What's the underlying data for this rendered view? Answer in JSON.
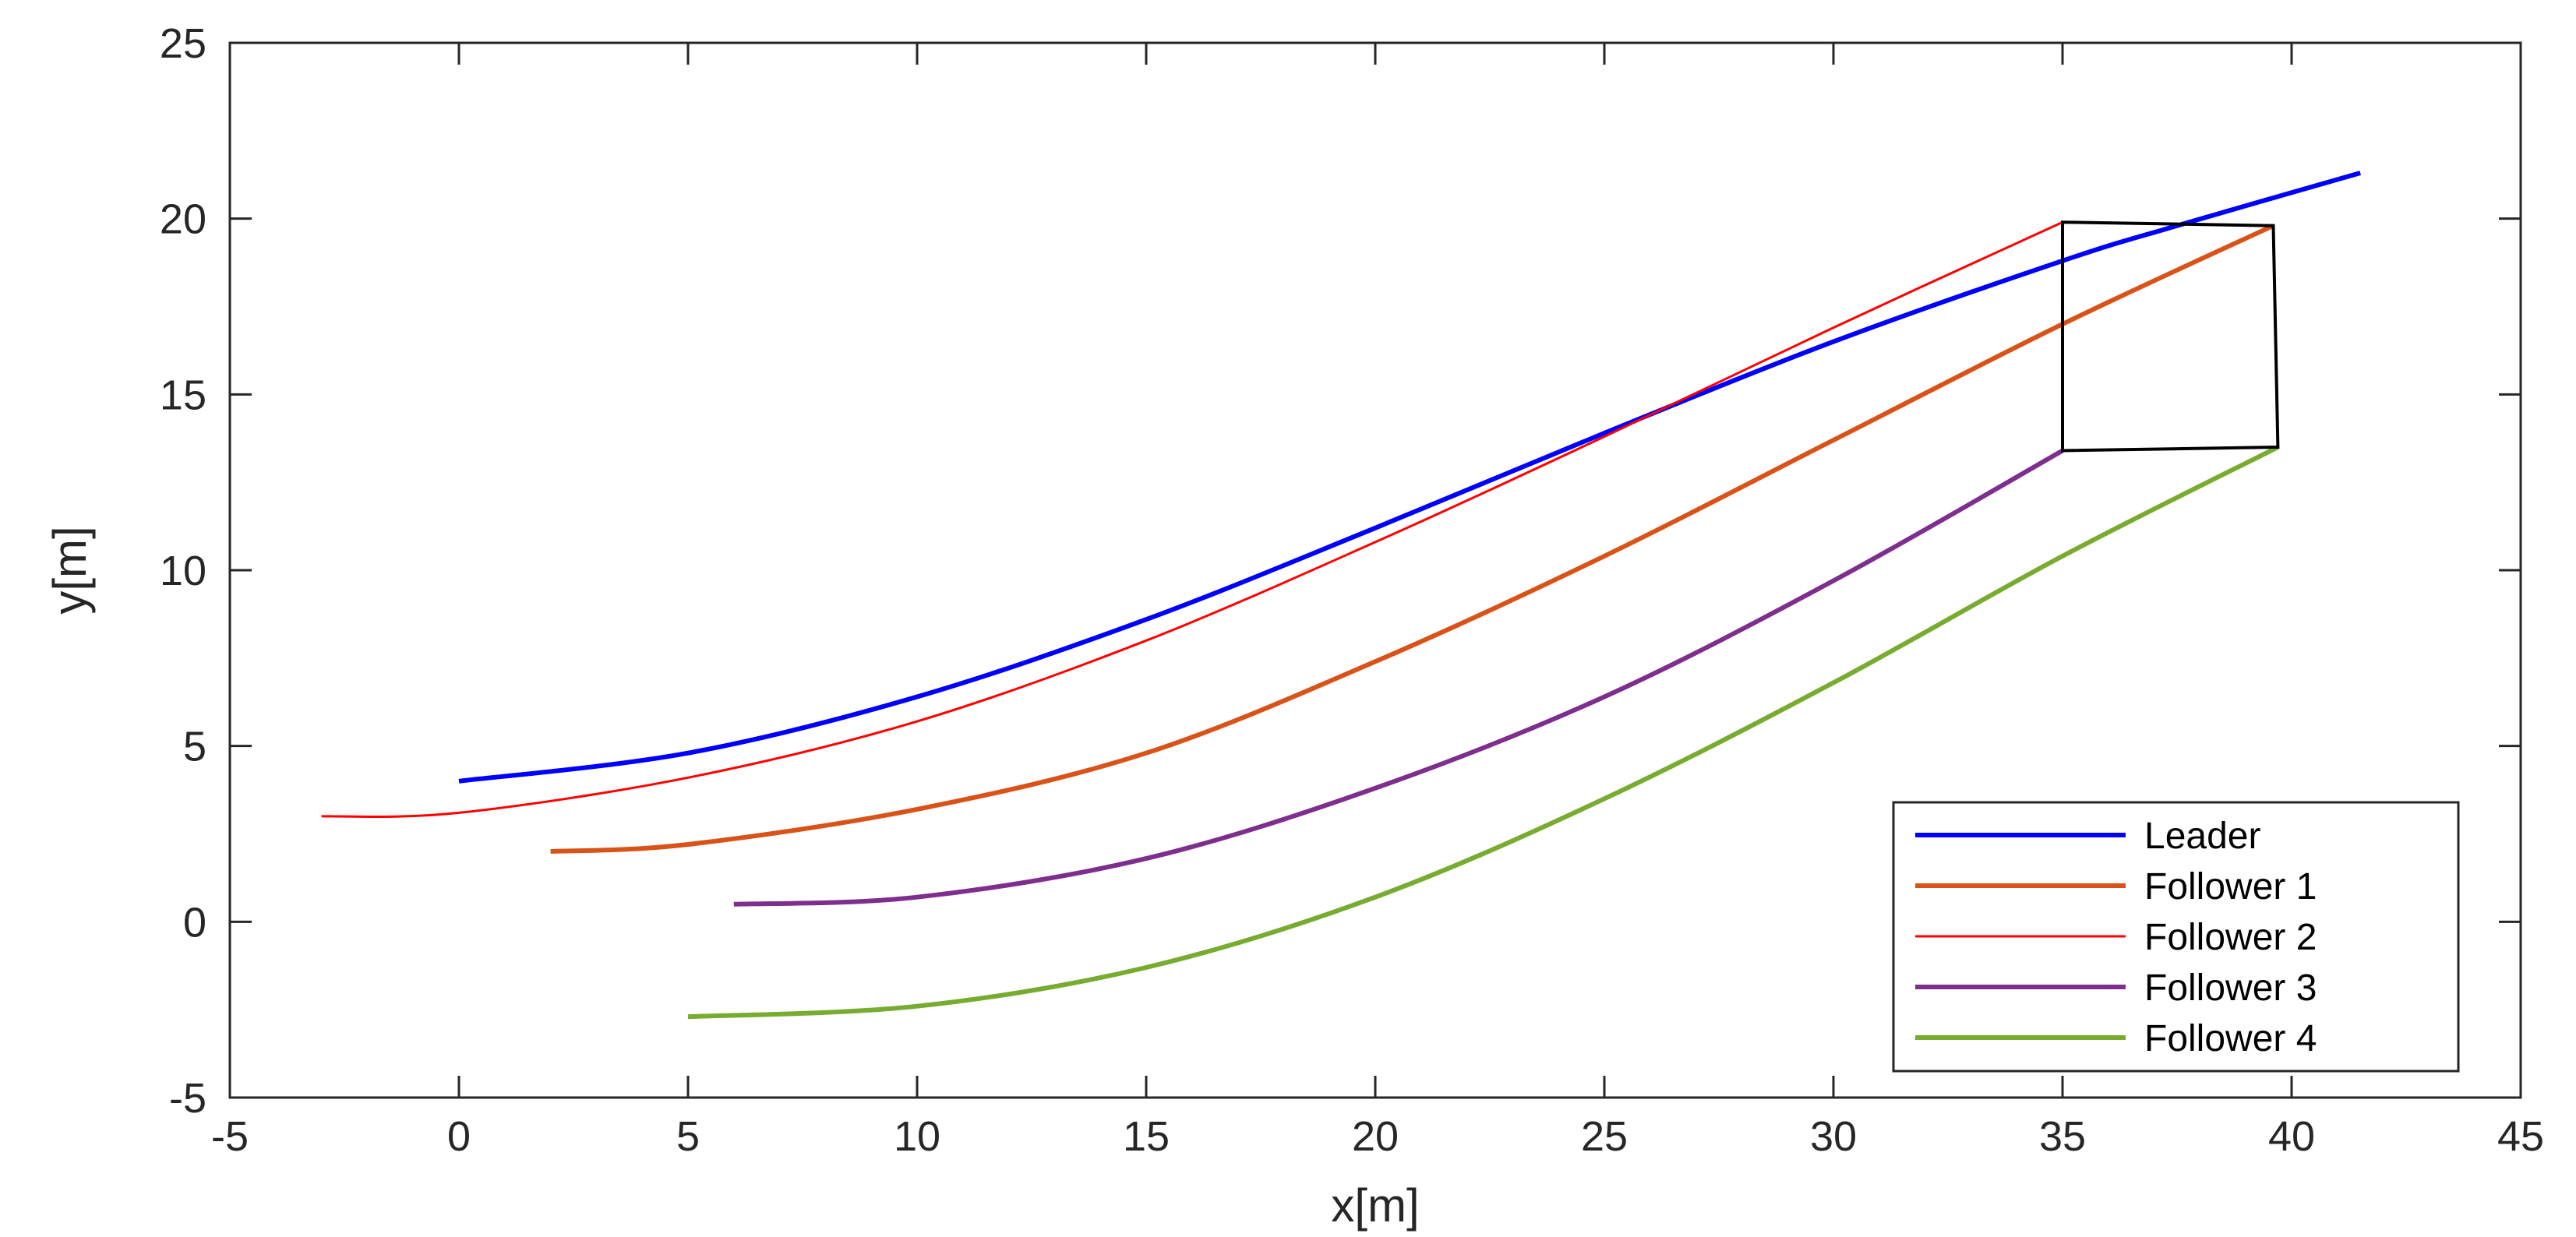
{
  "chart_data": {
    "type": "line",
    "title": "",
    "xlabel": "x[m]",
    "ylabel": "y[m]",
    "xlim": [
      -5,
      45
    ],
    "ylim": [
      -5,
      25
    ],
    "xticks": [
      -5,
      0,
      5,
      10,
      15,
      20,
      25,
      30,
      35,
      40,
      45
    ],
    "yticks": [
      -5,
      0,
      5,
      10,
      15,
      20,
      25
    ],
    "grid": false,
    "legend_position": "bottom-right",
    "series": [
      {
        "name": "Leader",
        "color": "#0000ff",
        "points": [
          [
            0,
            4.0
          ],
          [
            5,
            4.8
          ],
          [
            10,
            6.4
          ],
          [
            15,
            8.6
          ],
          [
            20,
            11.2
          ],
          [
            25,
            13.9
          ],
          [
            30,
            16.5
          ],
          [
            35,
            18.8
          ],
          [
            37.5,
            19.8
          ],
          [
            41.5,
            21.3
          ]
        ]
      },
      {
        "name": "Follower 1",
        "color": "#d95319",
        "points": [
          [
            2,
            2.0
          ],
          [
            5,
            2.2
          ],
          [
            10,
            3.2
          ],
          [
            15,
            4.8
          ],
          [
            20,
            7.4
          ],
          [
            25,
            10.4
          ],
          [
            30,
            13.7
          ],
          [
            35,
            17.0
          ],
          [
            39.6,
            19.8
          ]
        ]
      },
      {
        "name": "Follower 2",
        "color": "#ff0000",
        "points": [
          [
            -3,
            3.0
          ],
          [
            0,
            3.1
          ],
          [
            5,
            4.1
          ],
          [
            10,
            5.7
          ],
          [
            15,
            8.0
          ],
          [
            20,
            10.8
          ],
          [
            25,
            13.8
          ],
          [
            30,
            16.9
          ],
          [
            35,
            19.9
          ]
        ]
      },
      {
        "name": "Follower 3",
        "color": "#7e2f8e",
        "points": [
          [
            6,
            0.5
          ],
          [
            10,
            0.7
          ],
          [
            15,
            1.8
          ],
          [
            20,
            3.8
          ],
          [
            25,
            6.4
          ],
          [
            30,
            9.7
          ],
          [
            35,
            13.4
          ]
        ]
      },
      {
        "name": "Follower 4",
        "color": "#77ac30",
        "points": [
          [
            5,
            -2.7
          ],
          [
            10,
            -2.4
          ],
          [
            15,
            -1.3
          ],
          [
            20,
            0.7
          ],
          [
            25,
            3.5
          ],
          [
            30,
            6.8
          ],
          [
            35,
            10.4
          ],
          [
            39.7,
            13.5
          ]
        ]
      }
    ],
    "annotations": [
      {
        "type": "quadrilateral",
        "color": "#000000",
        "points": [
          [
            35,
            19.9
          ],
          [
            39.6,
            19.8
          ],
          [
            39.7,
            13.5
          ],
          [
            35,
            13.4
          ]
        ]
      }
    ]
  }
}
